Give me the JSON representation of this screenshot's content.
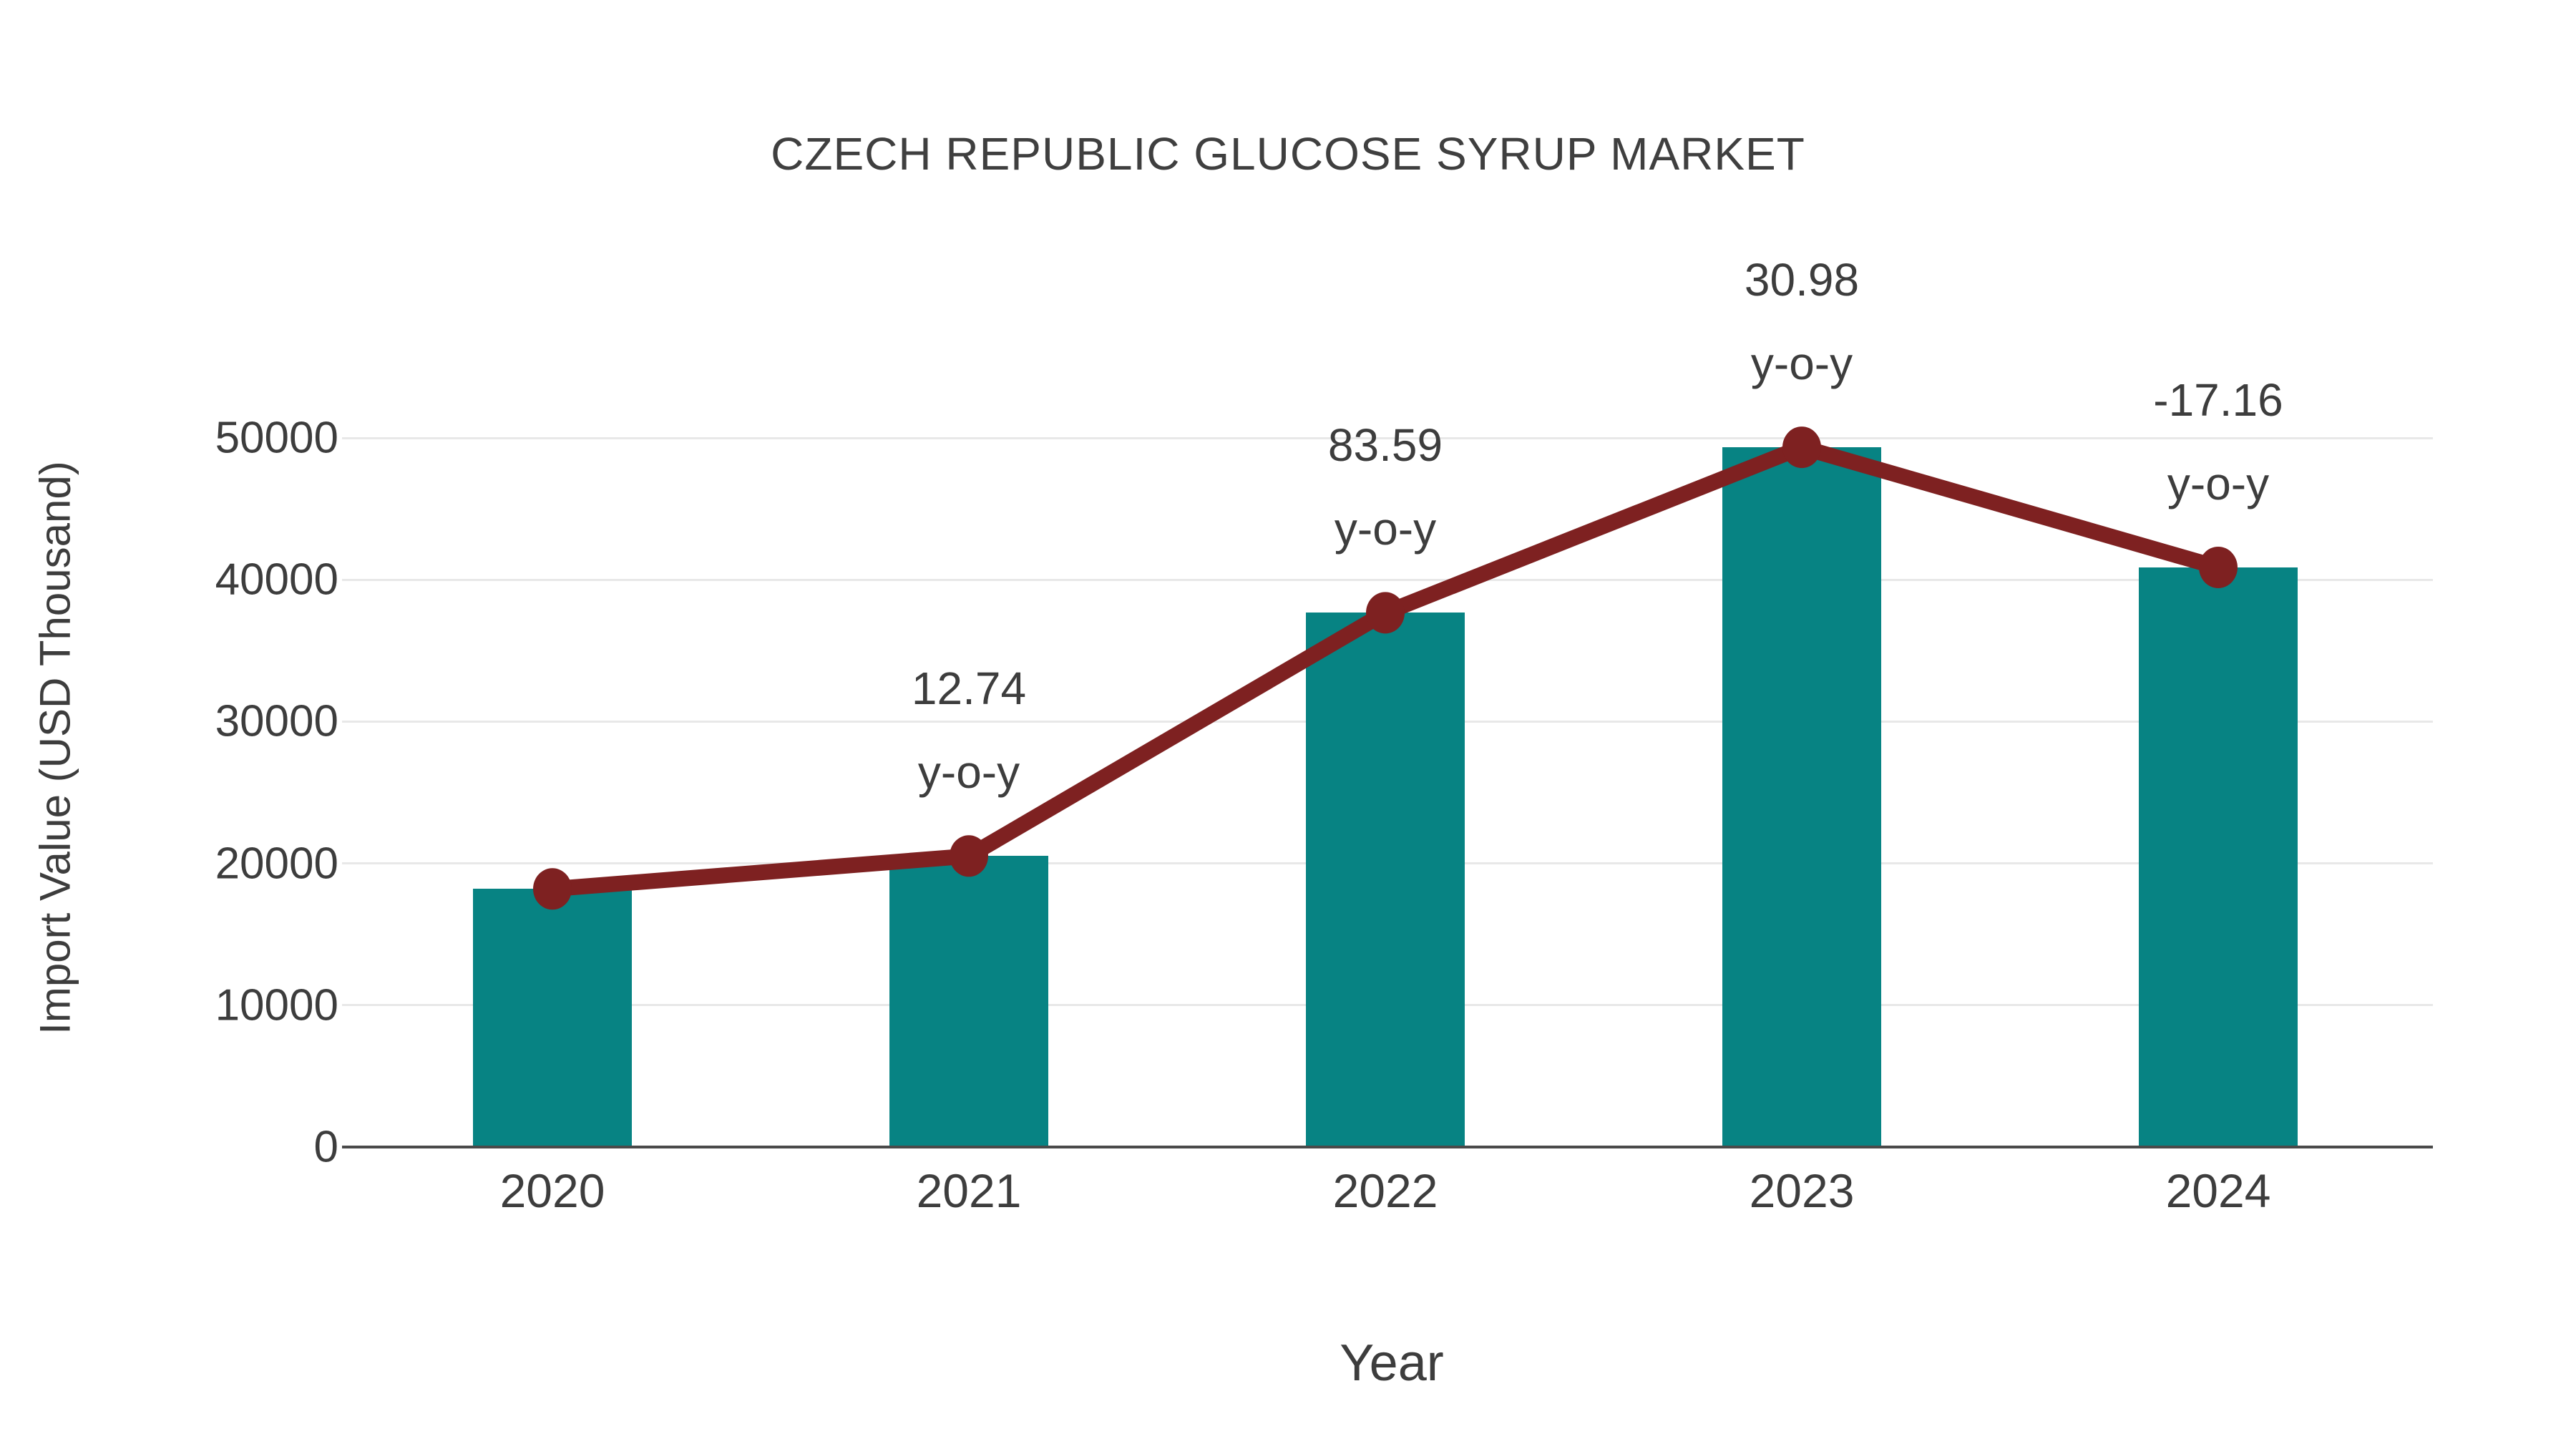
{
  "colors": {
    "background": "#ffffff",
    "bar": "#078383",
    "line": "#7e2121",
    "grid": "#e8e8e8",
    "axis": "#4a4a4a",
    "text": "#3d3d3d"
  },
  "chart_data": {
    "type": "bar",
    "title": "CZECH REPUBLIC GLUCOSE SYRUP MARKET",
    "xlabel": "Year",
    "ylabel": "Import Value (USD Thousand)",
    "categories": [
      "2020",
      "2021",
      "2022",
      "2023",
      "2024"
    ],
    "series": [
      {
        "name": "Import Value (USD Thousand)",
        "type": "bar",
        "color": "#078383",
        "values": [
          18200,
          20520,
          37670,
          49340,
          40870
        ]
      },
      {
        "name": "Import Value trend",
        "type": "line",
        "color": "#7e2121",
        "values": [
          18200,
          20520,
          37670,
          49340,
          40870
        ],
        "point_labels": [
          "",
          "12.74",
          "83.59",
          "30.98",
          "-17.16"
        ],
        "point_label_suffix": "y-o-y"
      }
    ],
    "ylim": [
      0,
      50000
    ],
    "yticks": [
      0,
      10000,
      20000,
      30000,
      40000,
      50000
    ],
    "grid": "horizontal gridlines",
    "legend": "none"
  }
}
